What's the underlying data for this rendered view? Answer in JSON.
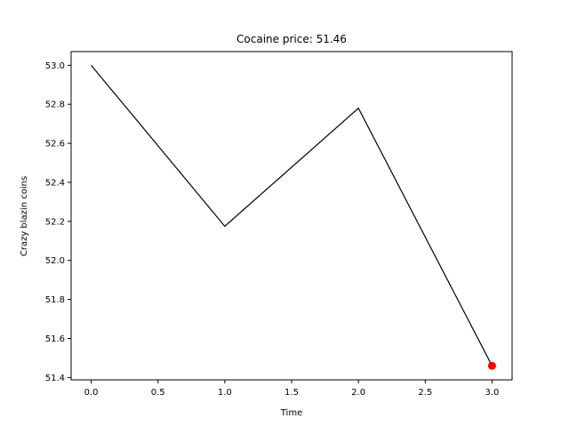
{
  "chart_data": {
    "type": "line",
    "title": "Cocaine price: 51.46",
    "xlabel": "Time",
    "ylabel": "Crazy blazin coins",
    "xlim": [
      -0.15,
      3.15
    ],
    "ylim": [
      51.388,
      53.07
    ],
    "xticks": [
      0.0,
      0.5,
      1.0,
      1.5,
      2.0,
      2.5,
      3.0
    ],
    "xtick_labels": [
      "0.0",
      "0.5",
      "1.0",
      "1.5",
      "2.0",
      "2.5",
      "3.0"
    ],
    "yticks": [
      51.4,
      51.6,
      51.8,
      52.0,
      52.2,
      52.4,
      52.6,
      52.8,
      53.0
    ],
    "ytick_labels": [
      "51.4",
      "51.6",
      "51.8",
      "52.0",
      "52.2",
      "52.4",
      "52.6",
      "52.8",
      "53.0"
    ],
    "grid": false,
    "series": [
      {
        "x": [
          0,
          1,
          2,
          3
        ],
        "y": [
          53.0,
          52.175,
          52.78,
          51.46
        ],
        "color": "#000000"
      }
    ],
    "highlight_point": {
      "x": 3,
      "y": 51.46,
      "color": "#ff0000"
    }
  }
}
